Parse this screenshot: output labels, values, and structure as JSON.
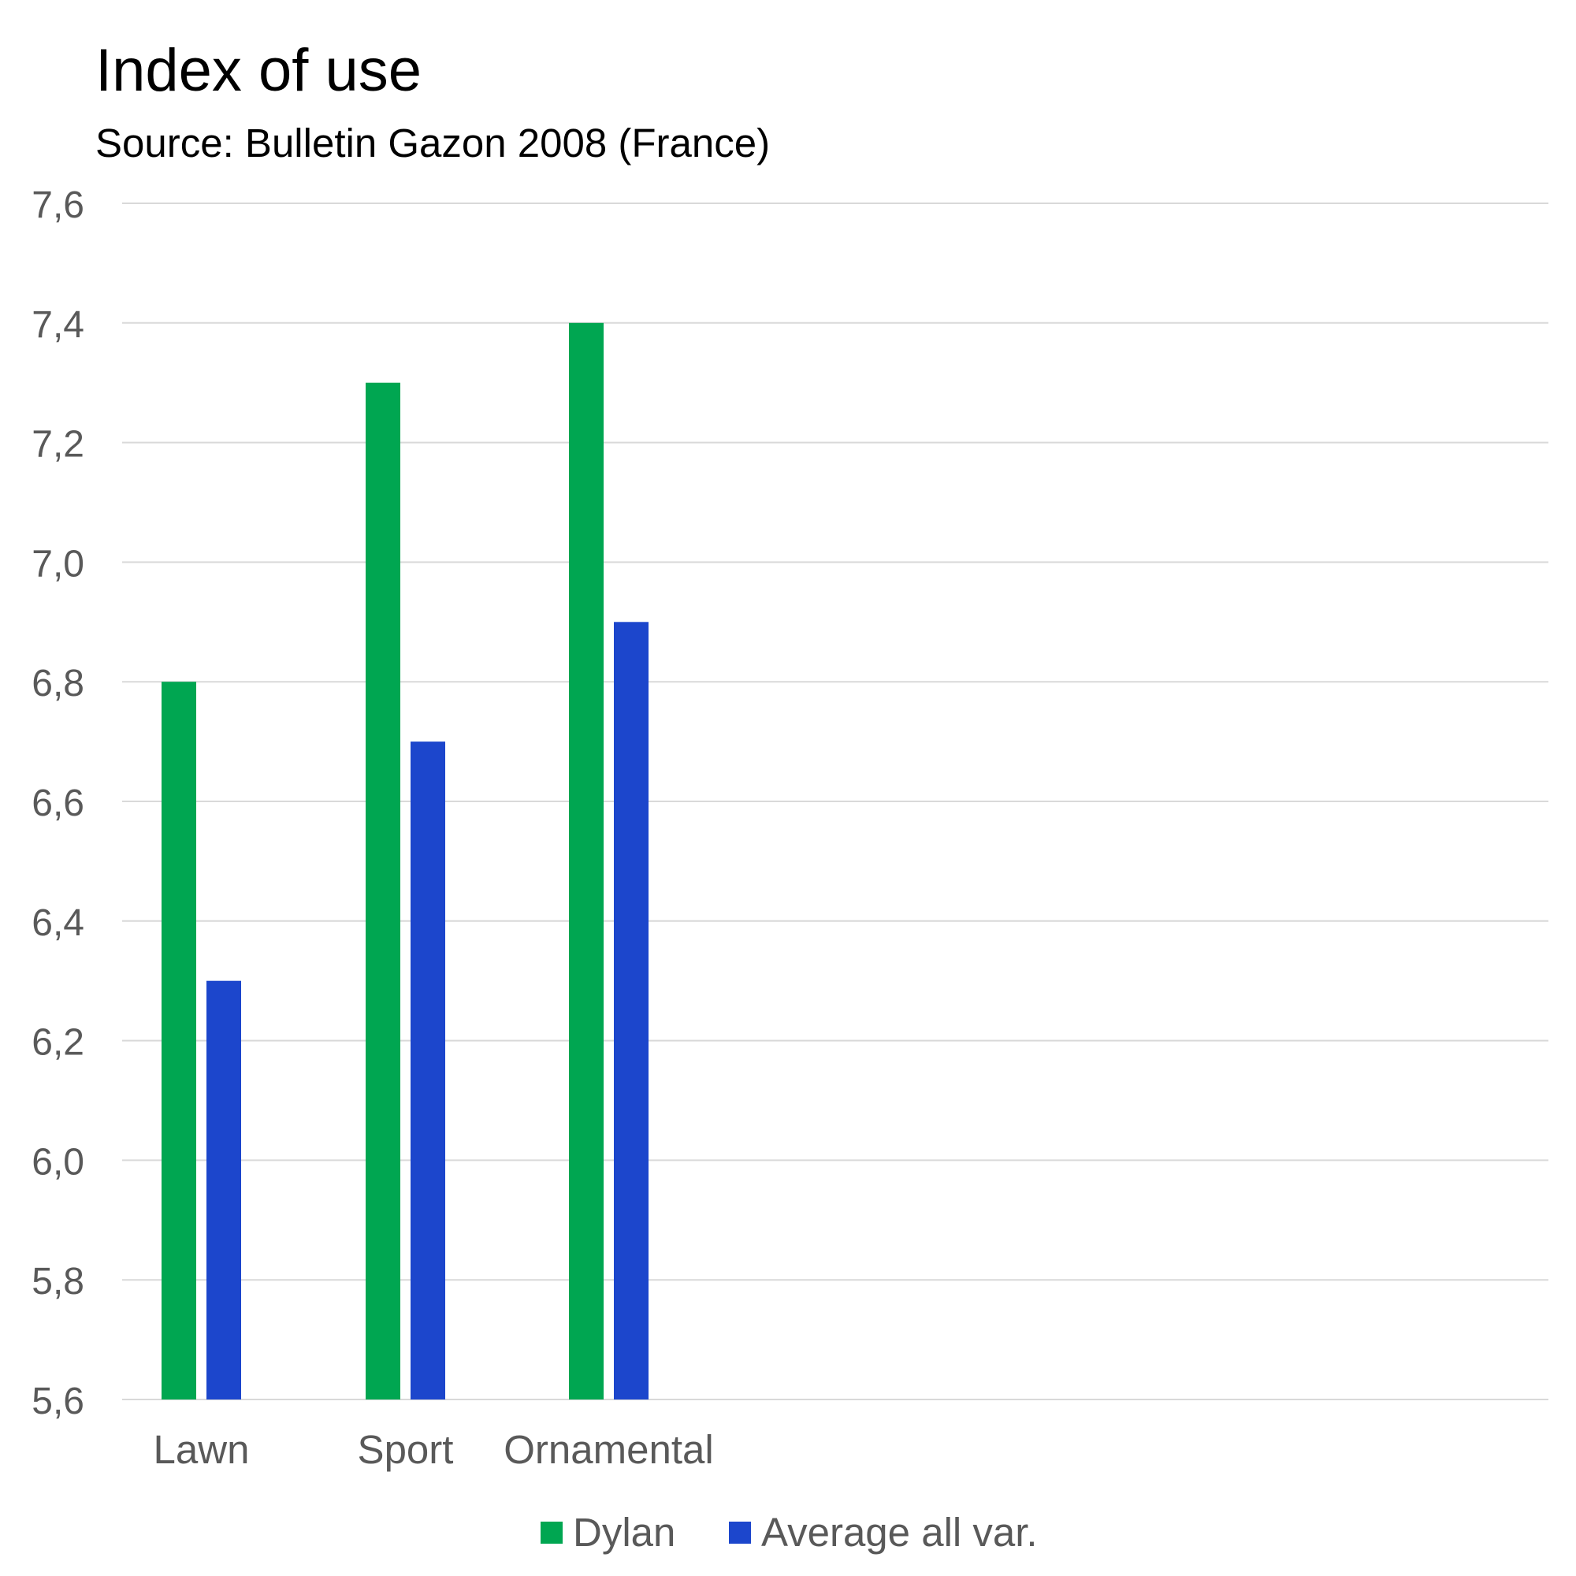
{
  "chart_data": {
    "type": "bar",
    "title": "Index of use",
    "subtitle": "Source: Bulletin Gazon 2008 (France)",
    "categories": [
      "Lawn",
      "Sport",
      "Ornamental"
    ],
    "series": [
      {
        "name": "Dylan",
        "values": [
          6.8,
          7.3,
          7.4
        ],
        "color": "#00a651"
      },
      {
        "name": "Average all var.",
        "values": [
          6.3,
          6.7,
          6.9
        ],
        "color": "#1c46cc"
      }
    ],
    "ylim": [
      5.6,
      7.6
    ],
    "yticks": [
      "5,6",
      "5,8",
      "6,0",
      "6,2",
      "6,4",
      "6,6",
      "6,8",
      "7,0",
      "7,2",
      "7,4",
      "7,6"
    ],
    "grid": true,
    "legend_position": "bottom-center",
    "colors": {
      "grid": "#d9d9d9",
      "tick_text": "#595959"
    }
  }
}
